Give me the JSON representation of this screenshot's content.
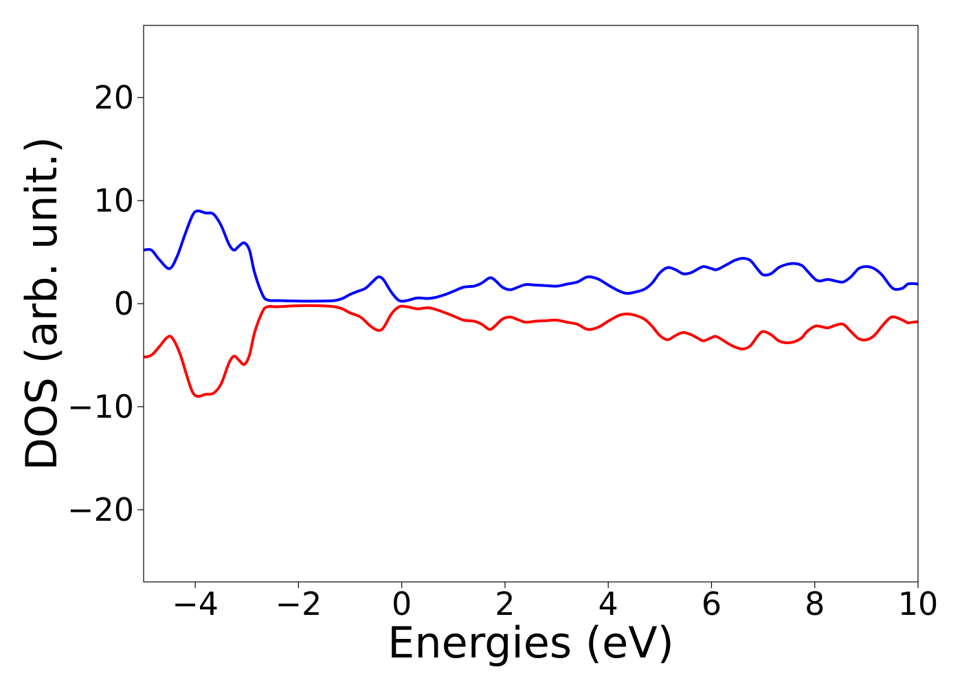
{
  "chart_data": {
    "type": "line",
    "title": "",
    "xlabel": "Energies (eV)",
    "ylabel": "DOS (arb. unit.)",
    "xlim": [
      -5,
      10
    ],
    "ylim": [
      -27,
      27
    ],
    "grid": false,
    "legend": "none",
    "x_ticks": [
      {
        "value": -4,
        "label": "−4"
      },
      {
        "value": -2,
        "label": "−2"
      },
      {
        "value": 0,
        "label": "0"
      },
      {
        "value": 2,
        "label": "2"
      },
      {
        "value": 4,
        "label": "4"
      },
      {
        "value": 6,
        "label": "6"
      },
      {
        "value": 8,
        "label": "8"
      },
      {
        "value": 10,
        "label": "10"
      }
    ],
    "y_ticks": [
      {
        "value": -20,
        "label": "−20"
      },
      {
        "value": -10,
        "label": "−10"
      },
      {
        "value": 0,
        "label": "0"
      },
      {
        "value": 10,
        "label": "10"
      },
      {
        "value": 20,
        "label": "20"
      }
    ],
    "series": [
      {
        "color": "#0000ff",
        "points": [
          [
            -5.0,
            5.2
          ],
          [
            -4.85,
            5.2
          ],
          [
            -4.7,
            4.3
          ],
          [
            -4.5,
            3.4
          ],
          [
            -4.35,
            4.6
          ],
          [
            -4.2,
            6.7
          ],
          [
            -4.05,
            8.6
          ],
          [
            -3.95,
            9.0
          ],
          [
            -3.8,
            8.8
          ],
          [
            -3.65,
            8.7
          ],
          [
            -3.5,
            7.6
          ],
          [
            -3.35,
            5.8
          ],
          [
            -3.25,
            5.2
          ],
          [
            -3.15,
            5.6
          ],
          [
            -3.05,
            5.9
          ],
          [
            -2.95,
            5.2
          ],
          [
            -2.85,
            3.0
          ],
          [
            -2.7,
            0.9
          ],
          [
            -2.6,
            0.35
          ],
          [
            -2.4,
            0.3
          ],
          [
            -2.0,
            0.25
          ],
          [
            -1.6,
            0.25
          ],
          [
            -1.3,
            0.3
          ],
          [
            -1.15,
            0.5
          ],
          [
            -1.0,
            0.9
          ],
          [
            -0.85,
            1.2
          ],
          [
            -0.7,
            1.5
          ],
          [
            -0.55,
            2.2
          ],
          [
            -0.45,
            2.6
          ],
          [
            -0.35,
            2.3
          ],
          [
            -0.2,
            1.1
          ],
          [
            -0.05,
            0.3
          ],
          [
            0.1,
            0.3
          ],
          [
            0.3,
            0.55
          ],
          [
            0.5,
            0.5
          ],
          [
            0.65,
            0.6
          ],
          [
            0.85,
            0.9
          ],
          [
            1.0,
            1.2
          ],
          [
            1.2,
            1.6
          ],
          [
            1.4,
            1.7
          ],
          [
            1.55,
            2.0
          ],
          [
            1.7,
            2.5
          ],
          [
            1.8,
            2.3
          ],
          [
            1.95,
            1.6
          ],
          [
            2.1,
            1.35
          ],
          [
            2.25,
            1.6
          ],
          [
            2.4,
            1.85
          ],
          [
            2.6,
            1.8
          ],
          [
            2.8,
            1.75
          ],
          [
            3.0,
            1.7
          ],
          [
            3.2,
            1.9
          ],
          [
            3.4,
            2.1
          ],
          [
            3.6,
            2.6
          ],
          [
            3.8,
            2.4
          ],
          [
            4.0,
            1.8
          ],
          [
            4.2,
            1.25
          ],
          [
            4.35,
            1.0
          ],
          [
            4.5,
            1.1
          ],
          [
            4.7,
            1.4
          ],
          [
            4.85,
            2.0
          ],
          [
            5.0,
            3.0
          ],
          [
            5.15,
            3.5
          ],
          [
            5.3,
            3.3
          ],
          [
            5.45,
            2.9
          ],
          [
            5.6,
            3.0
          ],
          [
            5.75,
            3.4
          ],
          [
            5.85,
            3.6
          ],
          [
            6.0,
            3.4
          ],
          [
            6.1,
            3.3
          ],
          [
            6.3,
            3.8
          ],
          [
            6.45,
            4.2
          ],
          [
            6.6,
            4.4
          ],
          [
            6.75,
            4.2
          ],
          [
            6.9,
            3.3
          ],
          [
            7.0,
            2.8
          ],
          [
            7.15,
            2.9
          ],
          [
            7.3,
            3.5
          ],
          [
            7.45,
            3.8
          ],
          [
            7.6,
            3.9
          ],
          [
            7.75,
            3.7
          ],
          [
            7.85,
            3.2
          ],
          [
            8.0,
            2.4
          ],
          [
            8.1,
            2.2
          ],
          [
            8.25,
            2.35
          ],
          [
            8.4,
            2.2
          ],
          [
            8.55,
            2.1
          ],
          [
            8.7,
            2.6
          ],
          [
            8.85,
            3.4
          ],
          [
            9.0,
            3.6
          ],
          [
            9.15,
            3.4
          ],
          [
            9.3,
            2.8
          ],
          [
            9.45,
            1.8
          ],
          [
            9.55,
            1.4
          ],
          [
            9.7,
            1.5
          ],
          [
            9.8,
            1.9
          ],
          [
            9.9,
            1.95
          ],
          [
            10.0,
            1.9
          ]
        ]
      },
      {
        "color": "#ff0000",
        "points": [
          [
            -5.0,
            -5.2
          ],
          [
            -4.85,
            -5.0
          ],
          [
            -4.7,
            -4.2
          ],
          [
            -4.55,
            -3.3
          ],
          [
            -4.45,
            -3.3
          ],
          [
            -4.3,
            -4.8
          ],
          [
            -4.15,
            -7.2
          ],
          [
            -4.05,
            -8.6
          ],
          [
            -3.95,
            -9.0
          ],
          [
            -3.8,
            -8.8
          ],
          [
            -3.65,
            -8.7
          ],
          [
            -3.5,
            -7.8
          ],
          [
            -3.35,
            -5.8
          ],
          [
            -3.25,
            -5.1
          ],
          [
            -3.15,
            -5.5
          ],
          [
            -3.05,
            -5.9
          ],
          [
            -2.95,
            -5.0
          ],
          [
            -2.85,
            -2.8
          ],
          [
            -2.7,
            -0.8
          ],
          [
            -2.6,
            -0.3
          ],
          [
            -2.4,
            -0.3
          ],
          [
            -2.0,
            -0.2
          ],
          [
            -1.6,
            -0.2
          ],
          [
            -1.3,
            -0.3
          ],
          [
            -1.15,
            -0.5
          ],
          [
            -1.0,
            -0.9
          ],
          [
            -0.8,
            -1.3
          ],
          [
            -0.6,
            -2.2
          ],
          [
            -0.45,
            -2.6
          ],
          [
            -0.35,
            -2.3
          ],
          [
            -0.2,
            -1.0
          ],
          [
            -0.05,
            -0.3
          ],
          [
            0.1,
            -0.3
          ],
          [
            0.3,
            -0.5
          ],
          [
            0.5,
            -0.4
          ],
          [
            0.65,
            -0.55
          ],
          [
            0.85,
            -0.9
          ],
          [
            1.0,
            -1.2
          ],
          [
            1.2,
            -1.6
          ],
          [
            1.4,
            -1.7
          ],
          [
            1.55,
            -2.0
          ],
          [
            1.7,
            -2.5
          ],
          [
            1.8,
            -2.2
          ],
          [
            1.95,
            -1.5
          ],
          [
            2.1,
            -1.3
          ],
          [
            2.25,
            -1.55
          ],
          [
            2.4,
            -1.8
          ],
          [
            2.6,
            -1.7
          ],
          [
            2.8,
            -1.65
          ],
          [
            3.0,
            -1.6
          ],
          [
            3.2,
            -1.8
          ],
          [
            3.4,
            -2.0
          ],
          [
            3.6,
            -2.5
          ],
          [
            3.8,
            -2.3
          ],
          [
            4.0,
            -1.7
          ],
          [
            4.2,
            -1.15
          ],
          [
            4.35,
            -1.0
          ],
          [
            4.5,
            -1.1
          ],
          [
            4.7,
            -1.5
          ],
          [
            4.85,
            -2.2
          ],
          [
            5.0,
            -3.1
          ],
          [
            5.15,
            -3.5
          ],
          [
            5.3,
            -3.1
          ],
          [
            5.45,
            -2.8
          ],
          [
            5.6,
            -3.0
          ],
          [
            5.75,
            -3.4
          ],
          [
            5.85,
            -3.6
          ],
          [
            6.0,
            -3.3
          ],
          [
            6.1,
            -3.2
          ],
          [
            6.3,
            -3.8
          ],
          [
            6.45,
            -4.2
          ],
          [
            6.6,
            -4.4
          ],
          [
            6.75,
            -4.1
          ],
          [
            6.9,
            -3.1
          ],
          [
            7.0,
            -2.7
          ],
          [
            7.15,
            -3.0
          ],
          [
            7.3,
            -3.6
          ],
          [
            7.45,
            -3.8
          ],
          [
            7.6,
            -3.7
          ],
          [
            7.75,
            -3.3
          ],
          [
            7.85,
            -2.7
          ],
          [
            8.0,
            -2.2
          ],
          [
            8.1,
            -2.2
          ],
          [
            8.25,
            -2.35
          ],
          [
            8.4,
            -2.1
          ],
          [
            8.55,
            -2.0
          ],
          [
            8.7,
            -2.7
          ],
          [
            8.85,
            -3.4
          ],
          [
            9.0,
            -3.5
          ],
          [
            9.15,
            -3.1
          ],
          [
            9.3,
            -2.2
          ],
          [
            9.45,
            -1.4
          ],
          [
            9.55,
            -1.3
          ],
          [
            9.7,
            -1.6
          ],
          [
            9.8,
            -1.85
          ],
          [
            9.9,
            -1.8
          ],
          [
            10.0,
            -1.75
          ]
        ]
      }
    ]
  }
}
